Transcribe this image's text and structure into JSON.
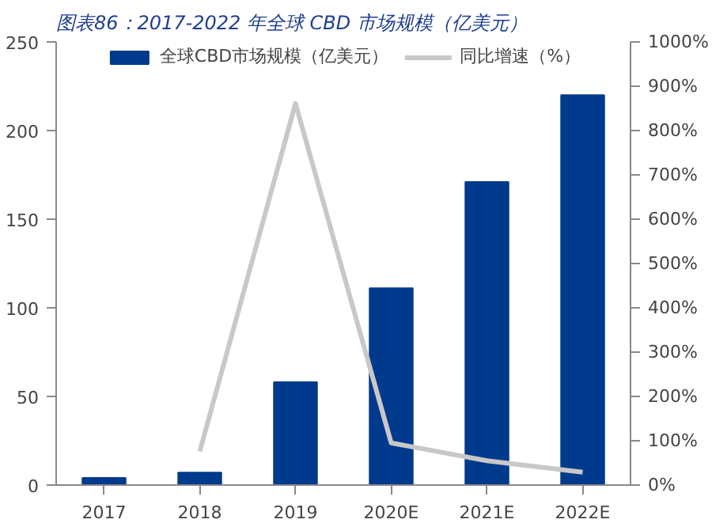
{
  "chart_data": {
    "type": "bar",
    "title": "图表86：2017-2022 年全球 CBD 市场规模（亿美元）",
    "categories": [
      "2017",
      "2018",
      "2019",
      "2020E",
      "2021E",
      "2022E"
    ],
    "series": [
      {
        "name": "全球CBD市场规模（亿美元）",
        "color": "#003a8c",
        "values": [
          4,
          7,
          58,
          111,
          171,
          220
        ]
      },
      {
        "name": "同比增速（%）",
        "type": "line",
        "axis": "y2",
        "color": "#c8c8c8",
        "values": [
          null,
          76,
          861,
          95,
          55,
          29
        ]
      }
    ],
    "ylim": [
      0,
      250
    ],
    "yticks": [
      0,
      50,
      100,
      150,
      200,
      250
    ],
    "y2lim": [
      0,
      1000
    ],
    "y2ticks": [
      {
        "value": 0,
        "label": "0%"
      },
      {
        "value": 100,
        "label": "100%"
      },
      {
        "value": 200,
        "label": "200%"
      },
      {
        "value": 300,
        "label": "300%"
      },
      {
        "value": 400,
        "label": "400%"
      },
      {
        "value": 500,
        "label": "500%"
      },
      {
        "value": 600,
        "label": "600%"
      },
      {
        "value": 700,
        "label": "700%"
      },
      {
        "value": 800,
        "label": "800%"
      },
      {
        "value": 900,
        "label": "900%"
      },
      {
        "value": 1000,
        "label": "1000%"
      }
    ],
    "legend": "top",
    "grid": false
  }
}
